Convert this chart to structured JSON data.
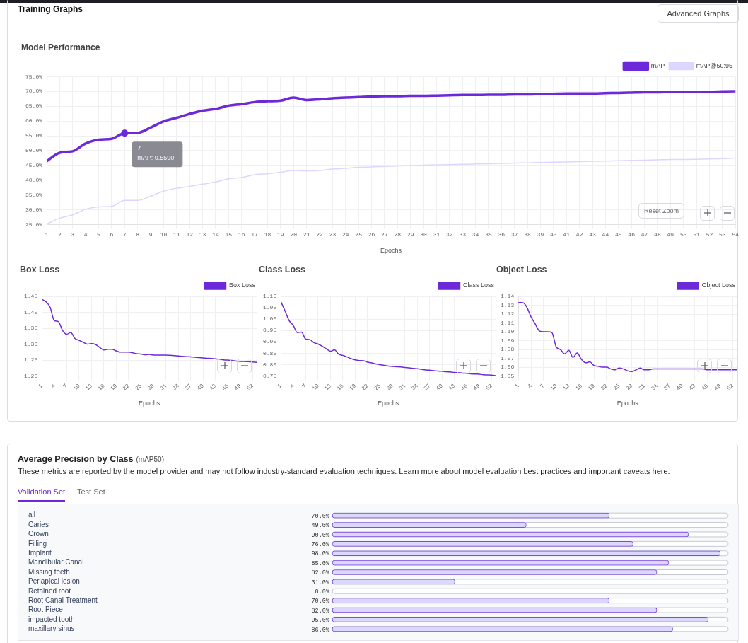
{
  "chart_data": [
    {
      "type": "line",
      "title": "Model Performance",
      "xlabel": "Epochs",
      "x": [
        1,
        2,
        3,
        4,
        5,
        6,
        7,
        8,
        9,
        10,
        11,
        12,
        13,
        14,
        15,
        16,
        17,
        18,
        19,
        20,
        21,
        22,
        23,
        24,
        25,
        26,
        27,
        28,
        29,
        30,
        31,
        32,
        33,
        34,
        35,
        36,
        37,
        38,
        39,
        40,
        41,
        42,
        43,
        44,
        45,
        46,
        47,
        48,
        49,
        50,
        51,
        52,
        53,
        54
      ],
      "xlim": [
        1,
        54
      ],
      "xticks": [
        1,
        2,
        3,
        4,
        5,
        6,
        7,
        8,
        9,
        10,
        11,
        12,
        13,
        14,
        15,
        16,
        17,
        18,
        19,
        20,
        21,
        22,
        23,
        24,
        25,
        26,
        27,
        28,
        29,
        30,
        31,
        32,
        33,
        34,
        35,
        36,
        37,
        38,
        39,
        40,
        41,
        42,
        43,
        44,
        45,
        46,
        47,
        48,
        49,
        50,
        51,
        52,
        53,
        54
      ],
      "series": [
        {
          "name": "mAP",
          "color": "#6d28d9",
          "values": [
            46.4,
            49.3,
            49.8,
            52.4,
            53.7,
            54.0,
            55.9,
            56.0,
            57.8,
            59.9,
            61.1,
            62.4,
            63.5,
            64.1,
            65.2,
            65.7,
            66.4,
            66.7,
            66.9,
            67.9,
            67.1,
            67.3,
            67.7,
            67.9,
            68.1,
            68.3,
            68.4,
            68.4,
            68.5,
            68.5,
            68.6,
            68.7,
            68.8,
            68.8,
            68.9,
            68.9,
            69.0,
            69.0,
            69.1,
            69.2,
            69.3,
            69.3,
            69.3,
            69.4,
            69.5,
            69.6,
            69.7,
            69.7,
            69.8,
            69.8,
            69.9,
            69.9,
            70.0,
            70.1
          ]
        },
        {
          "name": "mAP@50:95",
          "color": "#ddd6fe",
          "values": [
            25.2,
            27.2,
            28.3,
            30.2,
            31.0,
            31.2,
            33.2,
            33.2,
            34.6,
            36.3,
            37.3,
            37.9,
            38.7,
            39.4,
            40.5,
            40.9,
            41.9,
            42.2,
            42.7,
            43.3,
            43.2,
            43.3,
            43.8,
            44.0,
            44.4,
            44.5,
            44.7,
            44.8,
            45.0,
            45.1,
            45.2,
            45.3,
            45.4,
            45.5,
            45.6,
            45.7,
            45.8,
            45.9,
            46.0,
            46.1,
            46.2,
            46.3,
            46.4,
            46.5,
            46.6,
            46.7,
            46.8,
            46.9,
            47.0,
            47.0,
            47.1,
            47.2,
            47.3,
            47.5
          ]
        }
      ],
      "ylim": [
        25,
        75
      ],
      "yticks": [
        {
          "value": 25,
          "label": "25.0%"
        },
        {
          "value": 30,
          "label": "30.0%"
        },
        {
          "value": 35,
          "label": "35.0%"
        },
        {
          "value": 40,
          "label": "40.0%"
        },
        {
          "value": 45,
          "label": "45.0%"
        },
        {
          "value": 50,
          "label": "50.0%"
        },
        {
          "value": 55,
          "label": "55.0%"
        },
        {
          "value": 60,
          "label": "60.0%"
        },
        {
          "value": 65,
          "label": "65.0%"
        },
        {
          "value": 70,
          "label": "70.0%"
        },
        {
          "value": 75,
          "label": "75.0%"
        }
      ],
      "grid": true,
      "legend": "top right",
      "marker": "none",
      "line_style": "solid",
      "annotations": [
        "Training Graphs",
        "Advanced Graphs",
        "Reset Zoom",
        {
          "text": "7\nmAP: 0.5590",
          "x": 7,
          "y": 55.9
        }
      ]
    },
    {
      "type": "line",
      "title": "Box Loss",
      "xlabel": "Epochs",
      "x": [
        1,
        2,
        3,
        4,
        5,
        6,
        7,
        8,
        9,
        10,
        11,
        12,
        13,
        14,
        15,
        16,
        17,
        18,
        19,
        20,
        21,
        22,
        23,
        24,
        25,
        26,
        27,
        28,
        29,
        30,
        31,
        32,
        33,
        34,
        35,
        36,
        37,
        38,
        39,
        40,
        41,
        42,
        43,
        44,
        45,
        46,
        47,
        48,
        49,
        50,
        51,
        52,
        53
      ],
      "xlim": [
        1,
        53
      ],
      "xticks": [
        1,
        4,
        7,
        10,
        13,
        16,
        19,
        22,
        25,
        28,
        31,
        34,
        37,
        40,
        43,
        46,
        49,
        52
      ],
      "series": [
        {
          "name": "Box Loss",
          "color": "#6d28d9",
          "values": [
            1.441,
            1.433,
            1.416,
            1.374,
            1.371,
            1.343,
            1.331,
            1.337,
            1.318,
            1.312,
            1.306,
            1.3,
            1.302,
            1.299,
            1.29,
            1.282,
            1.284,
            1.284,
            1.279,
            1.275,
            1.275,
            1.275,
            1.273,
            1.27,
            1.269,
            1.267,
            1.268,
            1.266,
            1.266,
            1.266,
            1.266,
            1.265,
            1.264,
            1.263,
            1.262,
            1.261,
            1.26,
            1.259,
            1.258,
            1.257,
            1.256,
            1.255,
            1.254,
            1.253,
            1.251,
            1.25,
            1.249,
            1.247,
            1.246,
            1.246,
            1.245,
            1.244,
            1.243
          ]
        }
      ],
      "ylim": [
        1.2,
        1.45
      ],
      "yticks": [
        {
          "value": 1.2,
          "label": "1.20"
        },
        {
          "value": 1.25,
          "label": "1.25"
        },
        {
          "value": 1.3,
          "label": "1.30"
        },
        {
          "value": 1.35,
          "label": "1.35"
        },
        {
          "value": 1.4,
          "label": "1.40"
        },
        {
          "value": 1.45,
          "label": "1.45"
        }
      ],
      "grid": true,
      "legend": "top right",
      "marker": "none",
      "line_style": "solid"
    },
    {
      "type": "line",
      "title": "Class Loss",
      "xlabel": "Epochs",
      "x": [
        1,
        2,
        3,
        4,
        5,
        6,
        7,
        8,
        9,
        10,
        11,
        12,
        13,
        14,
        15,
        16,
        17,
        18,
        19,
        20,
        21,
        22,
        23,
        24,
        25,
        26,
        27,
        28,
        29,
        30,
        31,
        32,
        33,
        34,
        35,
        36,
        37,
        38,
        39,
        40,
        41,
        42,
        43,
        44,
        45,
        46,
        47,
        48,
        49,
        50,
        51,
        52,
        53
      ],
      "xlim": [
        1,
        53
      ],
      "xticks": [
        1,
        4,
        7,
        10,
        13,
        16,
        19,
        22,
        25,
        28,
        31,
        34,
        37,
        40,
        43,
        46,
        49,
        52
      ],
      "series": [
        {
          "name": "Class Loss",
          "color": "#6d28d9",
          "values": [
            1.077,
            1.037,
            0.994,
            0.973,
            0.941,
            0.943,
            0.913,
            0.91,
            0.897,
            0.891,
            0.881,
            0.87,
            0.859,
            0.865,
            0.846,
            0.841,
            0.834,
            0.827,
            0.821,
            0.818,
            0.817,
            0.811,
            0.808,
            0.803,
            0.8,
            0.797,
            0.794,
            0.792,
            0.791,
            0.79,
            0.788,
            0.786,
            0.784,
            0.782,
            0.78,
            0.777,
            0.776,
            0.774,
            0.772,
            0.771,
            0.769,
            0.768,
            0.766,
            0.765,
            0.763,
            0.762,
            0.76,
            0.759,
            0.758,
            0.756,
            0.755,
            0.754,
            0.752
          ]
        }
      ],
      "ylim": [
        0.75,
        1.1
      ],
      "yticks": [
        {
          "value": 0.75,
          "label": "0.75"
        },
        {
          "value": 0.8,
          "label": "0.80"
        },
        {
          "value": 0.85,
          "label": "0.85"
        },
        {
          "value": 0.9,
          "label": "0.90"
        },
        {
          "value": 0.95,
          "label": "0.95"
        },
        {
          "value": 1.0,
          "label": "1.00"
        },
        {
          "value": 1.05,
          "label": "1.05"
        },
        {
          "value": 1.1,
          "label": "1.10"
        }
      ],
      "grid": true,
      "legend": "top right",
      "marker": "none",
      "line_style": "solid"
    },
    {
      "type": "line",
      "title": "Object Loss",
      "xlabel": "Epochs",
      "x": [
        1,
        2,
        3,
        4,
        5,
        6,
        7,
        8,
        9,
        10,
        11,
        12,
        13,
        14,
        15,
        16,
        17,
        18,
        19,
        20,
        21,
        22,
        23,
        24,
        25,
        26,
        27,
        28,
        29,
        30,
        31,
        32,
        33,
        34,
        35,
        36,
        37,
        38,
        39,
        40,
        41,
        42,
        43,
        44,
        45,
        46,
        47,
        48,
        49,
        50,
        51,
        52,
        53
      ],
      "xlim": [
        1,
        53
      ],
      "xticks": [
        1,
        4,
        7,
        10,
        13,
        16,
        19,
        22,
        25,
        28,
        31,
        34,
        37,
        40,
        43,
        46,
        49,
        52
      ],
      "series": [
        {
          "name": "Object Loss",
          "color": "#6d28d9",
          "values": [
            1.133,
            1.133,
            1.128,
            1.117,
            1.109,
            1.101,
            1.1,
            1.1,
            1.099,
            1.083,
            1.08,
            1.075,
            1.079,
            1.071,
            1.076,
            1.069,
            1.065,
            1.066,
            1.062,
            1.061,
            1.06,
            1.06,
            1.058,
            1.057,
            1.059,
            1.058,
            1.056,
            1.055,
            1.057,
            1.059,
            1.057,
            1.057,
            1.058,
            1.058,
            1.058,
            1.058,
            1.058,
            1.058,
            1.058,
            1.058,
            1.058,
            1.058,
            1.058,
            1.058,
            1.058,
            1.057,
            1.057,
            1.057,
            1.057,
            1.057,
            1.057,
            1.057,
            1.057
          ]
        }
      ],
      "ylim": [
        1.05,
        1.14
      ],
      "yticks": [
        {
          "value": 1.05,
          "label": "1.05"
        },
        {
          "value": 1.06,
          "label": "1.06"
        },
        {
          "value": 1.07,
          "label": "1.07"
        },
        {
          "value": 1.08,
          "label": "1.08"
        },
        {
          "value": 1.09,
          "label": "1.09"
        },
        {
          "value": 1.1,
          "label": "1.10"
        },
        {
          "value": 1.11,
          "label": "1.11"
        },
        {
          "value": 1.12,
          "label": "1.12"
        },
        {
          "value": 1.13,
          "label": "1.13"
        },
        {
          "value": 1.14,
          "label": "1.14"
        }
      ],
      "grid": true,
      "legend": "top right",
      "marker": "none",
      "line_style": "solid"
    },
    {
      "type": "bar",
      "orientation": "horizontal",
      "title": "Average Precision by Class",
      "subtitle": "(mAP50)",
      "annotations": [
        "These metrics are reported by the model provider and may not follow industry-standard evaluation techniques. Learn more about model evaluation best practices and important caveats here.",
        "Validation Set",
        "Test Set"
      ],
      "categories": [
        "all",
        "Caries",
        "Crown",
        "Filling",
        "Implant",
        "Mandibular Canal",
        "Missing teeth",
        "Periapical lesion",
        "Retained root",
        "Root Canal Treatment",
        "Root Piece",
        "impacted tooth",
        "maxillary sinus"
      ],
      "values": [
        70,
        49,
        90,
        76,
        98,
        85,
        82,
        31,
        0,
        70,
        82,
        95,
        86
      ],
      "value_labels": [
        "70.0%",
        "49.0%",
        "90.0%",
        "76.0%",
        "98.0%",
        "85.0%",
        "82.0%",
        "31.0%",
        "0.0%",
        "70.0%",
        "82.0%",
        "95.0%",
        "86.0%"
      ],
      "color": "#ddd6fe",
      "xlim": [
        0,
        100
      ],
      "tick_labels": "y"
    }
  ]
}
